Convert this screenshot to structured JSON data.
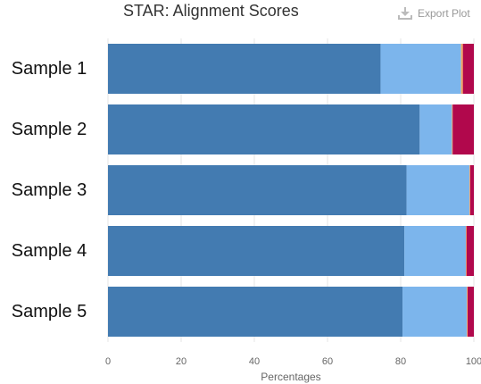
{
  "header": {
    "title": "STAR: Alignment Scores",
    "export_label": "Export Plot",
    "export_icon": "download-icon"
  },
  "chart_data": {
    "type": "bar",
    "orientation": "horizontal",
    "stacked": true,
    "title": "STAR: Alignment Scores",
    "xlabel": "Percentages",
    "ylabel": "",
    "xlim": [
      0,
      100
    ],
    "xticks": [
      0,
      20,
      40,
      60,
      80,
      100
    ],
    "grid": true,
    "categories": [
      "Sample 1",
      "Sample 2",
      "Sample 3",
      "Sample 4",
      "Sample 5"
    ],
    "series": [
      {
        "color": "#437bb1",
        "values": [
          74.5,
          85.2,
          81.6,
          81.0,
          80.5
        ]
      },
      {
        "color": "#7cb5ec",
        "values": [
          22.0,
          8.8,
          17.2,
          16.8,
          17.6
        ]
      },
      {
        "color": "#f7a35c",
        "values": [
          0.5,
          0.2,
          0.2,
          0.2,
          0.2
        ]
      },
      {
        "color": "#b1084c",
        "values": [
          4.5,
          6.8,
          3.5,
          4.6,
          4.6
        ]
      },
      {
        "color": "#7f0000",
        "values": [
          0.8,
          1.3,
          0.3,
          0.3,
          0.3
        ]
      }
    ]
  }
}
